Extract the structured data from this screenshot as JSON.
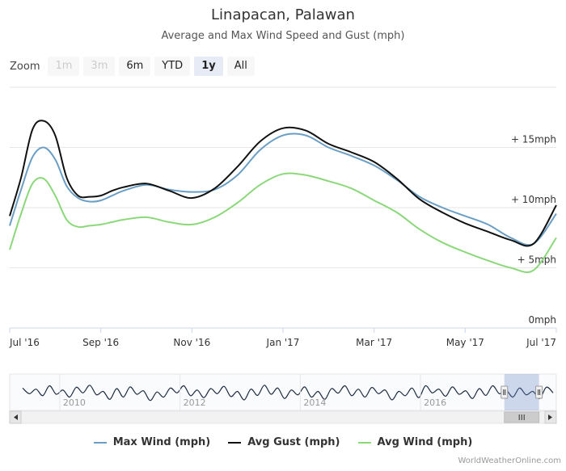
{
  "title": "Linapacan, Palawan",
  "subtitle": "Average and Max Wind Speed and Gust (mph)",
  "zoom": {
    "label": "Zoom",
    "buttons": [
      {
        "label": "1m",
        "state": "disabled"
      },
      {
        "label": "3m",
        "state": "disabled"
      },
      {
        "label": "6m",
        "state": "normal"
      },
      {
        "label": "YTD",
        "state": "normal"
      },
      {
        "label": "1y",
        "state": "active"
      },
      {
        "label": "All",
        "state": "normal"
      }
    ]
  },
  "credits": "WorldWeatherOnline.com",
  "colors": {
    "max": "#6a9ec5",
    "gust": "#111111",
    "avg": "#8bd87a",
    "grid": "#e6e6e6"
  },
  "chart_data": {
    "type": "line",
    "title": "Linapacan, Palawan",
    "subtitle": "Average and Max Wind Speed and Gust (mph)",
    "xlabel": "",
    "ylabel": "",
    "ylim": [
      0,
      20
    ],
    "yticks": [
      {
        "value": 0,
        "label": "0mph"
      },
      {
        "value": 5,
        "label": "+ 5mph"
      },
      {
        "value": 10,
        "label": "+ 10mph"
      },
      {
        "value": 15,
        "label": "+ 15mph"
      }
    ],
    "xticks": [
      {
        "t": 0,
        "label": "Jul '16"
      },
      {
        "t": 2,
        "label": "Sep '16"
      },
      {
        "t": 4,
        "label": "Nov '16"
      },
      {
        "t": 6,
        "label": "Jan '17"
      },
      {
        "t": 8,
        "label": "Mar '17"
      },
      {
        "t": 10,
        "label": "May '17"
      },
      {
        "t": 12,
        "label": "Jul '17"
      }
    ],
    "x": [
      0,
      0.25,
      0.5,
      0.75,
      1,
      1.25,
      1.5,
      1.75,
      2,
      2.25,
      2.5,
      3,
      3.5,
      4,
      4.5,
      5,
      5.5,
      6,
      6.5,
      7,
      7.5,
      8,
      8.5,
      9,
      9.5,
      10,
      10.5,
      11,
      11.5,
      12
    ],
    "series": [
      {
        "name": "Max Wind (mph)",
        "key": "max",
        "values": [
          8.5,
          11.5,
          14.2,
          15.0,
          14.0,
          11.8,
          10.8,
          10.5,
          10.6,
          11.0,
          11.4,
          11.9,
          11.5,
          11.3,
          11.5,
          12.7,
          14.8,
          16.0,
          16.0,
          15.0,
          14.3,
          13.5,
          12.3,
          10.9,
          10.0,
          9.3,
          8.6,
          7.5,
          7.0,
          9.5
        ]
      },
      {
        "name": "Avg Gust (mph)",
        "key": "gust",
        "values": [
          9.3,
          12.5,
          16.5,
          17.2,
          16.0,
          12.5,
          11.0,
          10.9,
          11.0,
          11.4,
          11.7,
          12.0,
          11.4,
          10.8,
          11.6,
          13.4,
          15.5,
          16.6,
          16.4,
          15.3,
          14.6,
          13.8,
          12.4,
          10.7,
          9.6,
          8.7,
          8.0,
          7.3,
          7.0,
          10.2
        ]
      },
      {
        "name": "Avg Wind (mph)",
        "key": "avg",
        "values": [
          6.5,
          9.5,
          12.0,
          12.4,
          11.0,
          9.0,
          8.4,
          8.5,
          8.6,
          8.8,
          9.0,
          9.2,
          8.8,
          8.6,
          9.2,
          10.4,
          11.9,
          12.8,
          12.7,
          12.2,
          11.6,
          10.6,
          9.6,
          8.2,
          7.1,
          6.3,
          5.6,
          5.0,
          4.8,
          7.5
        ]
      }
    ],
    "navigator": {
      "labels": [
        "2010",
        "2012",
        "2014",
        "2016"
      ],
      "values": [
        0.62,
        0.42,
        0.58,
        0.35,
        0.7,
        0.4,
        0.55,
        0.3,
        0.65,
        0.45,
        0.72,
        0.38,
        0.5,
        0.22,
        0.6,
        0.3,
        0.66,
        0.4,
        0.52,
        0.18,
        0.48,
        0.3,
        0.62,
        0.45,
        0.7,
        0.35,
        0.55,
        0.28,
        0.6,
        0.42,
        0.68,
        0.32,
        0.5,
        0.2,
        0.58,
        0.36,
        0.72,
        0.4,
        0.62,
        0.25,
        0.55,
        0.38,
        0.66,
        0.3,
        0.5,
        0.22,
        0.6,
        0.44,
        0.7,
        0.35,
        0.58,
        0.3,
        0.64,
        0.42,
        0.55,
        0.2,
        0.5,
        0.35,
        0.62,
        0.28,
        0.7,
        0.45,
        0.58,
        0.33,
        0.66,
        0.4,
        0.52,
        0.25,
        0.6,
        0.36,
        0.7,
        0.42,
        0.55,
        0.3,
        0.62,
        0.38,
        0.5,
        0.25,
        0.65,
        0.45
      ],
      "selection_start": 0.905,
      "selection_end": 0.995
    }
  }
}
